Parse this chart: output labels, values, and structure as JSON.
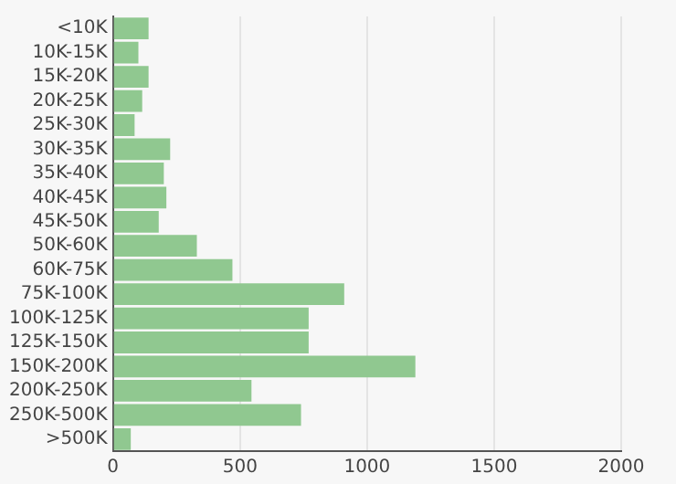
{
  "chart_data": {
    "type": "bar",
    "orientation": "horizontal",
    "categories": [
      "<10K",
      "10K-15K",
      "15K-20K",
      "20K-25K",
      "25K-30K",
      "30K-35K",
      "35K-40K",
      "40K-45K",
      "45K-50K",
      "50K-60K",
      "60K-75K",
      "75K-100K",
      "100K-125K",
      "125K-150K",
      "150K-200K",
      "200K-250K",
      "250K-500K",
      ">500K"
    ],
    "values": [
      140,
      100,
      140,
      115,
      85,
      225,
      200,
      210,
      180,
      330,
      470,
      910,
      770,
      770,
      1190,
      545,
      740,
      70
    ],
    "color": "#90c890",
    "xlim": [
      0,
      2000
    ],
    "xticks": [
      0,
      500,
      1000,
      1500,
      2000
    ],
    "grid": "x",
    "legend": false
  }
}
